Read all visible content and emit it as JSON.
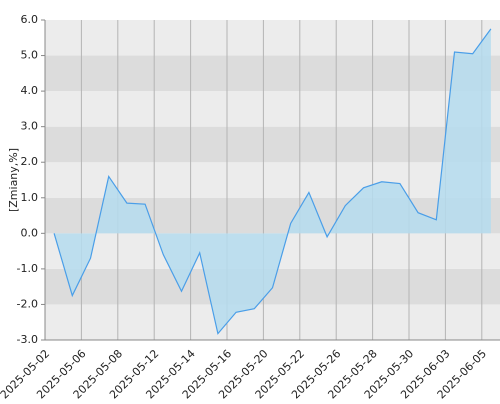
{
  "chart_data": {
    "type": "area",
    "y_label": "[Zmiany,%]",
    "categories": [
      "2025-05-02",
      null,
      "2025-05-06",
      null,
      "2025-05-08",
      null,
      "2025-05-12",
      null,
      "2025-05-14",
      null,
      "2025-05-16",
      null,
      "2025-05-20",
      null,
      "2025-05-22",
      null,
      "2025-05-26",
      null,
      "2025-05-28",
      null,
      "2025-05-30",
      null,
      "2025-06-03",
      null,
      "2025-06-05"
    ],
    "values": [
      0.0,
      -1.75,
      -0.7,
      1.6,
      0.85,
      0.82,
      -0.6,
      -1.63,
      -0.55,
      -2.82,
      -2.22,
      -2.12,
      -1.53,
      0.28,
      1.15,
      -0.1,
      0.78,
      1.28,
      1.45,
      1.4,
      0.58,
      0.38,
      5.1,
      5.05,
      5.75
    ],
    "color": "#4a9ee8",
    "fill_color": "#b5dcee",
    "ylim": [
      -3.0,
      6.0
    ],
    "yticks": [
      {
        "value": -3,
        "label": "-3.0"
      },
      {
        "value": -2,
        "label": "-2.0"
      },
      {
        "value": -1,
        "label": "-1.0"
      },
      {
        "value": 0,
        "label": "0.0"
      },
      {
        "value": 1,
        "label": "1.0"
      },
      {
        "value": 2,
        "label": "2.0"
      },
      {
        "value": 3,
        "label": "3.0"
      },
      {
        "value": 4,
        "label": "4.0"
      },
      {
        "value": 5,
        "label": "5.0"
      },
      {
        "value": 6,
        "label": "6.0"
      }
    ],
    "grid": true
  }
}
